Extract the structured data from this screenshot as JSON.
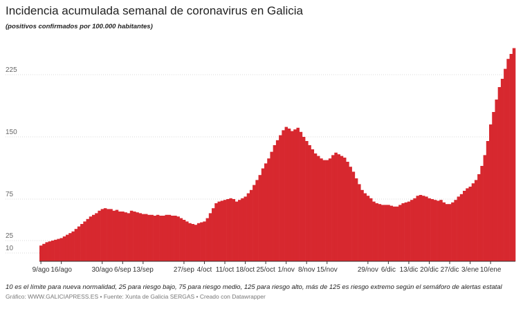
{
  "chart_data": {
    "type": "bar",
    "title": "Incidencia acumulada semanal de coronavirus en Galicia",
    "subtitle": "(positivos confirmados por 100.000 habitantes)",
    "note": "10 es el límite para nueva normalidad, 25 para riesgo bajo, 75 para riesgo medio, 125 para riesgo alto, más de 125 es riesgo extremo según el semáforo de alertas estatal",
    "source": "Gráfico: WWW.GALICIAPRESS.ES • Fuente: Xunta de Galicia SERGAS • Creado con Datawrapper",
    "color": "#d7282f",
    "ylim": [
      0,
      265
    ],
    "yticks": [
      10,
      25,
      75,
      150,
      225
    ],
    "grid": true,
    "categories": [
      "9/ago",
      null,
      null,
      null,
      null,
      null,
      null,
      "16/ago",
      null,
      null,
      null,
      null,
      null,
      null,
      null,
      null,
      null,
      null,
      null,
      null,
      null,
      "30/ago",
      null,
      null,
      null,
      null,
      null,
      null,
      "6/sep",
      null,
      null,
      null,
      null,
      null,
      null,
      "13/sep",
      null,
      null,
      null,
      null,
      null,
      null,
      null,
      null,
      null,
      null,
      null,
      null,
      null,
      "27/sep",
      null,
      null,
      null,
      null,
      null,
      null,
      "4/oct",
      null,
      null,
      null,
      null,
      null,
      null,
      "11/oct",
      null,
      null,
      null,
      null,
      null,
      null,
      "18/oct",
      null,
      null,
      null,
      null,
      null,
      null,
      "25/oct",
      null,
      null,
      null,
      null,
      null,
      null,
      "1/nov",
      null,
      null,
      null,
      null,
      null,
      null,
      "8/nov",
      null,
      null,
      null,
      null,
      null,
      null,
      "15/nov",
      null,
      null,
      null,
      null,
      null,
      null,
      null,
      null,
      null,
      null,
      null,
      null,
      null,
      "29/nov",
      null,
      null,
      null,
      null,
      null,
      null,
      "6/dic",
      null,
      null,
      null,
      null,
      null,
      null,
      "13/dic",
      null,
      null,
      null,
      null,
      null,
      null,
      "20/dic",
      null,
      null,
      null,
      null,
      null,
      null,
      "27/dic",
      null,
      null,
      null,
      null,
      null,
      null,
      "3/ene",
      null,
      null,
      null,
      null,
      null,
      null,
      "10/ene",
      null,
      null,
      null,
      null,
      null,
      null,
      null,
      null
    ],
    "values": [
      19,
      21,
      23,
      24,
      25,
      26,
      27,
      28,
      30,
      32,
      34,
      36,
      39,
      42,
      45,
      48,
      51,
      54,
      56,
      58,
      61,
      63,
      64,
      63,
      63,
      61,
      62,
      60,
      60,
      59,
      58,
      61,
      60,
      59,
      58,
      57,
      57,
      56,
      56,
      55,
      56,
      55,
      55,
      56,
      56,
      55,
      55,
      54,
      52,
      50,
      48,
      46,
      45,
      44,
      46,
      47,
      48,
      52,
      58,
      64,
      70,
      72,
      73,
      74,
      75,
      76,
      75,
      72,
      74,
      76,
      78,
      82,
      86,
      92,
      98,
      104,
      112,
      118,
      124,
      132,
      140,
      146,
      152,
      158,
      162,
      160,
      157,
      159,
      161,
      156,
      150,
      145,
      140,
      135,
      130,
      127,
      124,
      122,
      122,
      124,
      128,
      131,
      129,
      127,
      125,
      120,
      114,
      108,
      100,
      93,
      86,
      82,
      79,
      76,
      72,
      70,
      69,
      68,
      68,
      68,
      67,
      66,
      66,
      68,
      70,
      71,
      72,
      74,
      76,
      79,
      80,
      79,
      78,
      76,
      75,
      74,
      73,
      74,
      71,
      69,
      69,
      71,
      74,
      78,
      81,
      85,
      88,
      90,
      94,
      98,
      105,
      115,
      128,
      145,
      165,
      180,
      195,
      210,
      220,
      232,
      244,
      250,
      257
    ]
  }
}
